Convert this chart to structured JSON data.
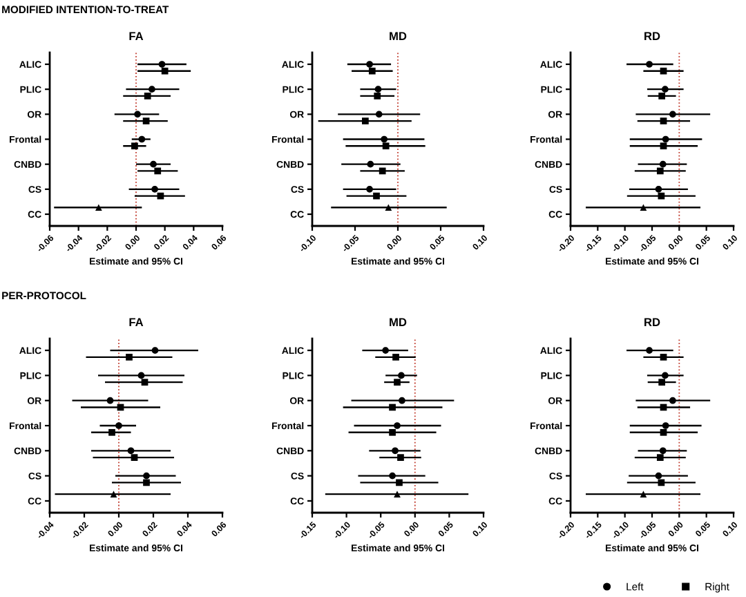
{
  "chart_data": [
    {
      "type": "scatter",
      "orientation": "horizontal",
      "title": "FA",
      "xlabel": "Estimate and 95% CI",
      "annotations": [
        "MODIFIED INTENTION-TO-TREAT"
      ],
      "categories": [
        "ALIC",
        "PLIC",
        "OR",
        "Frontal",
        "CNBD",
        "CS",
        "CC"
      ],
      "xlim": [
        -0.06,
        0.06
      ],
      "xticks": [
        {
          "value": -0.06,
          "label": "-0.06"
        },
        {
          "value": -0.04,
          "label": "-0.04"
        },
        {
          "value": -0.02,
          "label": "-0.02"
        },
        {
          "value": 0,
          "label": "0.00"
        },
        {
          "value": 0.02,
          "label": "0.02"
        },
        {
          "value": 0.04,
          "label": "0.04"
        },
        {
          "value": 0.06,
          "label": "0.06"
        }
      ],
      "ref_lines": [
        {
          "axis": "x",
          "value": 0,
          "color": "#c0392b",
          "line_style": "dotted"
        }
      ],
      "series": [
        {
          "color": "#000000",
          "marker": "circle",
          "values": [
            0.018,
            0.011,
            0.001,
            0.004,
            0.012,
            0.013,
            null
          ],
          "errors": [
            [
              0.001,
              0.035
            ],
            [
              -0.007,
              0.03
            ],
            [
              -0.015,
              0.016
            ],
            [
              -0.003,
              0.01
            ],
            [
              0.0,
              0.024
            ],
            [
              -0.005,
              0.03
            ],
            null
          ]
        },
        {
          "color": "#000000",
          "marker": "square",
          "values": [
            0.02,
            0.008,
            0.007,
            -0.001,
            0.015,
            0.017,
            null
          ],
          "errors": [
            [
              0.001,
              0.038
            ],
            [
              -0.009,
              0.024
            ],
            [
              -0.009,
              0.022
            ],
            [
              -0.009,
              0.007
            ],
            [
              0.001,
              0.029
            ],
            [
              -0.001,
              0.034
            ],
            null
          ]
        },
        {
          "color": "#000000",
          "marker": "triangle",
          "values": [
            null,
            null,
            null,
            null,
            null,
            null,
            -0.026
          ],
          "errors": [
            null,
            null,
            null,
            null,
            null,
            null,
            [
              -0.057,
              0.004
            ]
          ]
        }
      ]
    },
    {
      "type": "scatter",
      "orientation": "horizontal",
      "title": "MD",
      "xlabel": "Estimate and 95% CI",
      "categories": [
        "ALIC",
        "PLIC",
        "OR",
        "Frontal",
        "CNBD",
        "CS",
        "CC"
      ],
      "xlim": [
        -0.1,
        0.1
      ],
      "xticks": [
        {
          "value": -0.1,
          "label": "-0.10"
        },
        {
          "value": -0.05,
          "label": "-0.05"
        },
        {
          "value": 0,
          "label": "0.00"
        },
        {
          "value": 0.05,
          "label": "0.05"
        },
        {
          "value": 0.1,
          "label": "0.10"
        }
      ],
      "ref_lines": [
        {
          "axis": "x",
          "value": 0,
          "color": "#c0392b",
          "line_style": "dotted"
        }
      ],
      "series": [
        {
          "color": "#000000",
          "marker": "circle",
          "values": [
            -0.033,
            -0.023,
            -0.022,
            -0.016,
            -0.032,
            -0.033,
            null
          ],
          "errors": [
            [
              -0.059,
              -0.008
            ],
            [
              -0.044,
              -0.002
            ],
            [
              -0.07,
              0.026
            ],
            [
              -0.064,
              0.031
            ],
            [
              -0.066,
              0.003
            ],
            [
              -0.064,
              -0.002
            ],
            null
          ]
        },
        {
          "color": "#000000",
          "marker": "square",
          "values": [
            -0.03,
            -0.024,
            -0.038,
            -0.014,
            -0.018,
            -0.025,
            null
          ],
          "errors": [
            [
              -0.054,
              -0.006
            ],
            [
              -0.044,
              -0.004
            ],
            [
              -0.093,
              0.016
            ],
            [
              -0.061,
              0.032
            ],
            [
              -0.044,
              0.008
            ],
            [
              -0.06,
              0.01
            ],
            null
          ]
        },
        {
          "color": "#000000",
          "marker": "triangle",
          "values": [
            null,
            null,
            null,
            null,
            null,
            null,
            -0.011
          ],
          "errors": [
            null,
            null,
            null,
            null,
            null,
            null,
            [
              -0.078,
              0.057
            ]
          ]
        }
      ]
    },
    {
      "type": "scatter",
      "orientation": "horizontal",
      "title": "RD",
      "xlabel": "Estimate and 95% CI",
      "categories": [
        "ALIC",
        "PLIC",
        "OR",
        "Frontal",
        "CNBD",
        "CS",
        "CC"
      ],
      "xlim": [
        -0.2,
        0.1
      ],
      "xticks": [
        {
          "value": -0.2,
          "label": "-0.20"
        },
        {
          "value": -0.15,
          "label": "-0.15"
        },
        {
          "value": -0.1,
          "label": "-0.10"
        },
        {
          "value": -0.05,
          "label": "-0.05"
        },
        {
          "value": 0,
          "label": "0.00"
        },
        {
          "value": 0.05,
          "label": "0.05"
        },
        {
          "value": 0.1,
          "label": "0.10"
        }
      ],
      "ref_lines": [
        {
          "axis": "x",
          "value": 0,
          "color": "#c0392b",
          "line_style": "dotted"
        }
      ],
      "series": [
        {
          "color": "#000000",
          "marker": "circle",
          "values": [
            -0.055,
            -0.026,
            -0.012,
            -0.025,
            -0.03,
            -0.038,
            null
          ],
          "errors": [
            [
              -0.097,
              -0.011
            ],
            [
              -0.059,
              0.008
            ],
            [
              -0.08,
              0.057
            ],
            [
              -0.091,
              0.042
            ],
            [
              -0.076,
              0.014
            ],
            [
              -0.092,
              0.016
            ],
            null
          ]
        },
        {
          "color": "#000000",
          "marker": "square",
          "values": [
            -0.029,
            -0.032,
            -0.029,
            -0.029,
            -0.035,
            -0.033,
            null
          ],
          "errors": [
            [
              -0.066,
              0.008
            ],
            [
              -0.058,
              -0.006
            ],
            [
              -0.077,
              0.02
            ],
            [
              -0.091,
              0.034
            ],
            [
              -0.082,
              0.012
            ],
            [
              -0.096,
              0.03
            ],
            null
          ]
        },
        {
          "color": "#000000",
          "marker": "triangle",
          "values": [
            null,
            null,
            null,
            null,
            null,
            null,
            -0.066
          ],
          "errors": [
            null,
            null,
            null,
            null,
            null,
            null,
            [
              -0.172,
              0.039
            ]
          ]
        }
      ]
    },
    {
      "type": "scatter",
      "orientation": "horizontal",
      "title": "FA",
      "xlabel": "Estimate and 95% CI",
      "annotations": [
        "PER-PROTOCOL"
      ],
      "categories": [
        "ALIC",
        "PLIC",
        "OR",
        "Frontal",
        "CNBD",
        "CS",
        "CC"
      ],
      "xlim": [
        -0.04,
        0.06
      ],
      "xticks": [
        {
          "value": -0.04,
          "label": "-0.04"
        },
        {
          "value": -0.02,
          "label": "-0.02"
        },
        {
          "value": 0,
          "label": "0.00"
        },
        {
          "value": 0.02,
          "label": "0.02"
        },
        {
          "value": 0.04,
          "label": "0.04"
        },
        {
          "value": 0.06,
          "label": "0.06"
        }
      ],
      "ref_lines": [
        {
          "axis": "x",
          "value": 0,
          "color": "#c0392b",
          "line_style": "dotted"
        }
      ],
      "series": [
        {
          "color": "#000000",
          "marker": "circle",
          "values": [
            0.021,
            0.013,
            -0.005,
            0.0,
            0.007,
            0.016,
            null
          ],
          "errors": [
            [
              -0.005,
              0.046
            ],
            [
              -0.012,
              0.038
            ],
            [
              -0.027,
              0.017
            ],
            [
              -0.011,
              0.01
            ],
            [
              -0.016,
              0.03
            ],
            [
              -0.002,
              0.033
            ],
            null
          ]
        },
        {
          "color": "#000000",
          "marker": "square",
          "values": [
            0.006,
            0.015,
            0.001,
            -0.004,
            0.009,
            0.016,
            null
          ],
          "errors": [
            [
              -0.019,
              0.031
            ],
            [
              -0.008,
              0.037
            ],
            [
              -0.022,
              0.024
            ],
            [
              -0.016,
              0.007
            ],
            [
              -0.015,
              0.032
            ],
            [
              -0.004,
              0.036
            ],
            null
          ]
        },
        {
          "color": "#000000",
          "marker": "triangle",
          "values": [
            null,
            null,
            null,
            null,
            null,
            null,
            -0.003
          ],
          "errors": [
            null,
            null,
            null,
            null,
            null,
            null,
            [
              -0.037,
              0.03
            ]
          ]
        }
      ]
    },
    {
      "type": "scatter",
      "orientation": "horizontal",
      "title": "MD",
      "xlabel": "Estimate and 95% CI",
      "categories": [
        "ALIC",
        "PLIC",
        "OR",
        "Frontal",
        "CNBD",
        "CS",
        "CC"
      ],
      "xlim": [
        -0.15,
        0.1
      ],
      "xticks": [
        {
          "value": -0.15,
          "label": "-0.15"
        },
        {
          "value": -0.1,
          "label": "-0.10"
        },
        {
          "value": -0.05,
          "label": "-0.05"
        },
        {
          "value": 0,
          "label": "0.00"
        },
        {
          "value": 0.05,
          "label": "0.05"
        },
        {
          "value": 0.1,
          "label": "0.10"
        }
      ],
      "ref_lines": [
        {
          "axis": "x",
          "value": 0,
          "color": "#c0392b",
          "line_style": "dotted"
        }
      ],
      "series": [
        {
          "color": "#000000",
          "marker": "circle",
          "values": [
            -0.043,
            -0.02,
            -0.019,
            -0.026,
            -0.029,
            -0.033,
            null
          ],
          "errors": [
            [
              -0.077,
              -0.01
            ],
            [
              -0.043,
              0.003
            ],
            [
              -0.093,
              0.057
            ],
            [
              -0.089,
              0.038
            ],
            [
              -0.067,
              0.008
            ],
            [
              -0.083,
              0.015
            ],
            null
          ]
        },
        {
          "color": "#000000",
          "marker": "square",
          "values": [
            -0.028,
            -0.026,
            -0.033,
            -0.033,
            -0.021,
            -0.023,
            null
          ],
          "errors": [
            [
              -0.058,
              0.001
            ],
            [
              -0.045,
              -0.008
            ],
            [
              -0.105,
              0.04
            ],
            [
              -0.097,
              0.031
            ],
            [
              -0.052,
              0.009
            ],
            [
              -0.08,
              0.034
            ],
            null
          ]
        },
        {
          "color": "#000000",
          "marker": "triangle",
          "values": [
            null,
            null,
            null,
            null,
            null,
            null,
            -0.026
          ],
          "errors": [
            null,
            null,
            null,
            null,
            null,
            null,
            [
              -0.131,
              0.078
            ]
          ]
        }
      ]
    },
    {
      "type": "scatter",
      "orientation": "horizontal",
      "title": "RD",
      "xlabel": "Estimate and 95% CI",
      "legend": "bottom right",
      "categories": [
        "ALIC",
        "PLIC",
        "OR",
        "Frontal",
        "CNBD",
        "CS",
        "CC"
      ],
      "xlim": [
        -0.2,
        0.1
      ],
      "xticks": [
        {
          "value": -0.2,
          "label": "-0.20"
        },
        {
          "value": -0.15,
          "label": "-0.15"
        },
        {
          "value": -0.1,
          "label": "-0.10"
        },
        {
          "value": -0.05,
          "label": "-0.05"
        },
        {
          "value": 0,
          "label": "0.00"
        },
        {
          "value": 0.05,
          "label": "0.05"
        },
        {
          "value": 0.1,
          "label": "0.10"
        }
      ],
      "ref_lines": [
        {
          "axis": "x",
          "value": 0,
          "color": "#c0392b",
          "line_style": "dotted"
        }
      ],
      "series": [
        {
          "name": "Left",
          "color": "#000000",
          "marker": "circle",
          "values": [
            -0.055,
            -0.026,
            -0.012,
            -0.025,
            -0.03,
            -0.038,
            null
          ],
          "errors": [
            [
              -0.097,
              -0.011
            ],
            [
              -0.059,
              0.008
            ],
            [
              -0.08,
              0.057
            ],
            [
              -0.091,
              0.041
            ],
            [
              -0.076,
              0.014
            ],
            [
              -0.093,
              0.016
            ],
            null
          ]
        },
        {
          "name": "Right",
          "color": "#000000",
          "marker": "square",
          "values": [
            -0.029,
            -0.032,
            -0.029,
            -0.029,
            -0.035,
            -0.033,
            null
          ],
          "errors": [
            [
              -0.066,
              0.008
            ],
            [
              -0.058,
              -0.006
            ],
            [
              -0.077,
              0.02
            ],
            [
              -0.091,
              0.034
            ],
            [
              -0.082,
              0.012
            ],
            [
              -0.096,
              0.03
            ],
            null
          ]
        },
        {
          "color": "#000000",
          "marker": "triangle",
          "values": [
            null,
            null,
            null,
            null,
            null,
            null,
            -0.066
          ],
          "errors": [
            null,
            null,
            null,
            null,
            null,
            null,
            [
              -0.172,
              0.039
            ]
          ]
        }
      ]
    }
  ]
}
